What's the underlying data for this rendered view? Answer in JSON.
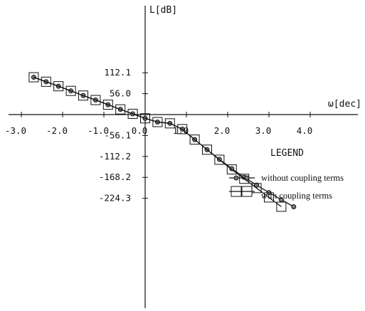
{
  "chart_data": {
    "type": "line",
    "xlabel": "ω[dec]",
    "ylabel": "L[dB]",
    "xlim": [
      -3.0,
      4.0
    ],
    "ylim": [
      -224.3,
      112.1
    ],
    "x_ticks": [
      -3.0,
      -2.0,
      -1.0,
      0.0,
      1.0,
      2.0,
      3.0,
      4.0
    ],
    "x_tick_labels": [
      "-3.0",
      "-2.0",
      "-1.0",
      "0.0",
      "1.0",
      "2.0",
      "3.0",
      "4.0"
    ],
    "y_ticks": [
      112.1,
      56.0,
      -56.1,
      -112.2,
      -168.2,
      -224.3
    ],
    "y_tick_labels": [
      "112.1",
      "56.0",
      "-56.1",
      "-112.2",
      "-168.2",
      "-224.3"
    ],
    "legend_title": "LEGEND",
    "legend_position": "right",
    "series": [
      {
        "name": "without coupling terms",
        "marker": "circle",
        "color": "#111111",
        "x": [
          -2.7,
          -2.4,
          -2.1,
          -1.8,
          -1.5,
          -1.2,
          -0.9,
          -0.6,
          -0.3,
          0.0,
          0.3,
          0.6,
          0.9,
          1.2,
          1.5,
          1.8,
          2.1,
          2.4,
          2.7,
          3.0,
          3.3,
          3.6
        ],
        "y": [
          100.0,
          88.0,
          76.0,
          63.5,
          51.0,
          39.0,
          26.5,
          14.0,
          2.0,
          -10.0,
          -20.0,
          -23.5,
          -39.0,
          -67.0,
          -94.0,
          -120.0,
          -145.0,
          -168.0,
          -189.0,
          -209.0,
          -228.0,
          -247.0
        ]
      },
      {
        "name": "with coupling terms",
        "marker": "square",
        "color": "#111111",
        "x": [
          -2.7,
          -2.4,
          -2.1,
          -1.8,
          -1.5,
          -1.2,
          -0.9,
          -0.6,
          -0.3,
          0.0,
          0.3,
          0.6,
          0.9,
          1.2,
          1.5,
          1.8,
          2.1,
          2.4,
          2.7,
          3.0,
          3.3
        ],
        "y": [
          100.0,
          88.0,
          76.0,
          63.5,
          51.0,
          39.0,
          26.5,
          14.0,
          2.0,
          -10.0,
          -20.0,
          -23.5,
          -39.0,
          -67.0,
          -94.0,
          -121.0,
          -147.0,
          -172.0,
          -197.0,
          -222.0,
          -247.0
        ]
      }
    ]
  }
}
